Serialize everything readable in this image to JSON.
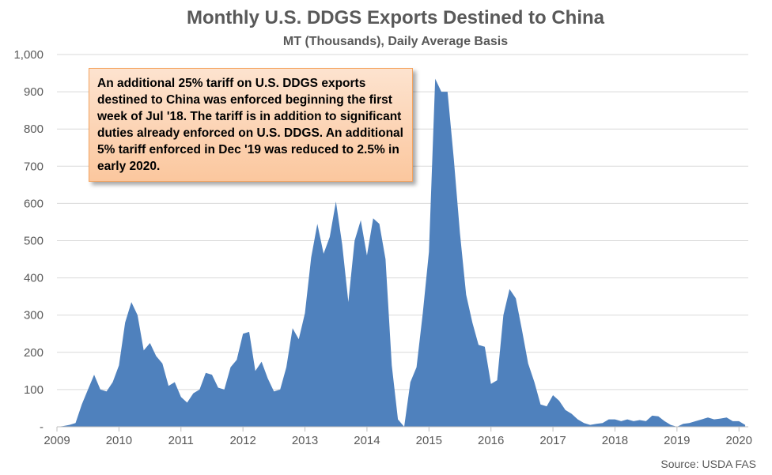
{
  "chart_data": {
    "type": "area",
    "title": "Monthly U.S. DDGS Exports Destined to China",
    "subtitle": "MT (Thousands), Daily Average Basis",
    "source": "Source: USDA FAS",
    "annotation": "An additional 25% tariff on U.S. DDGS exports destined to China was enforced beginning the first week of Jul '18. The tariff is in addition to significant duties already enforced on U.S. DDGS. An additional 5% tariff enforced in Dec '19 was reduced to 2.5% in early 2020.",
    "xlim": [
      2009,
      2020.15
    ],
    "ylim": [
      0,
      1000
    ],
    "y_ticks": [
      0,
      100,
      200,
      300,
      400,
      500,
      600,
      700,
      800,
      900,
      1000
    ],
    "y_tick_labels": [
      "-",
      "100",
      "200",
      "300",
      "400",
      "500",
      "600",
      "700",
      "800",
      "900",
      "1,000"
    ],
    "x_ticks": [
      2009,
      2010,
      2011,
      2012,
      2013,
      2014,
      2015,
      2016,
      2017,
      2018,
      2019,
      2020
    ],
    "x_tick_labels": [
      "2009",
      "2010",
      "2011",
      "2012",
      "2013",
      "2014",
      "2015",
      "2016",
      "2017",
      "2018",
      "2019",
      "2020"
    ],
    "grid": true,
    "series_color": "#4f81bd",
    "series": [
      {
        "x": [
          2009.0,
          2009.1,
          2009.2,
          2009.3,
          2009.4,
          2009.5,
          2009.6,
          2009.7,
          2009.8,
          2009.9,
          2010.0,
          2010.1,
          2010.2,
          2010.3,
          2010.4,
          2010.5,
          2010.6,
          2010.7,
          2010.8,
          2010.9,
          2011.0,
          2011.1,
          2011.2,
          2011.3,
          2011.4,
          2011.5,
          2011.6,
          2011.7,
          2011.8,
          2011.9,
          2012.0,
          2012.1,
          2012.2,
          2012.3,
          2012.4,
          2012.5,
          2012.6,
          2012.7,
          2012.8,
          2012.9,
          2013.0,
          2013.1,
          2013.2,
          2013.3,
          2013.4,
          2013.5,
          2013.6,
          2013.7,
          2013.8,
          2013.9,
          2014.0,
          2014.1,
          2014.2,
          2014.3,
          2014.4,
          2014.5,
          2014.6,
          2014.7,
          2014.8,
          2014.9,
          2015.0,
          2015.1,
          2015.2,
          2015.3,
          2015.4,
          2015.5,
          2015.6,
          2015.7,
          2015.8,
          2015.9,
          2016.0,
          2016.1,
          2016.2,
          2016.3,
          2016.4,
          2016.5,
          2016.6,
          2016.7,
          2016.8,
          2016.9,
          2017.0,
          2017.1,
          2017.2,
          2017.3,
          2017.4,
          2017.5,
          2017.6,
          2017.7,
          2017.8,
          2017.9,
          2018.0,
          2018.1,
          2018.2,
          2018.3,
          2018.4,
          2018.5,
          2018.6,
          2018.7,
          2018.8,
          2018.9,
          2019.0,
          2019.1,
          2019.2,
          2019.3,
          2019.4,
          2019.5,
          2019.6,
          2019.7,
          2019.8,
          2019.9,
          2020.0,
          2020.1
        ],
        "values": [
          0,
          2,
          5,
          10,
          60,
          100,
          140,
          100,
          95,
          120,
          165,
          280,
          335,
          300,
          205,
          225,
          190,
          170,
          110,
          120,
          80,
          65,
          90,
          100,
          145,
          140,
          105,
          100,
          160,
          180,
          250,
          255,
          150,
          175,
          130,
          95,
          100,
          160,
          265,
          235,
          305,
          455,
          545,
          465,
          510,
          605,
          490,
          335,
          500,
          555,
          460,
          560,
          545,
          450,
          165,
          20,
          0,
          120,
          160,
          305,
          470,
          935,
          900,
          900,
          720,
          520,
          355,
          280,
          220,
          215,
          115,
          125,
          300,
          370,
          345,
          260,
          170,
          120,
          60,
          55,
          85,
          70,
          45,
          35,
          20,
          10,
          5,
          8,
          10,
          20,
          20,
          15,
          20,
          15,
          18,
          15,
          30,
          28,
          15,
          5,
          0,
          8,
          10,
          15,
          20,
          25,
          20,
          22,
          25,
          15,
          15,
          5
        ]
      }
    ]
  }
}
